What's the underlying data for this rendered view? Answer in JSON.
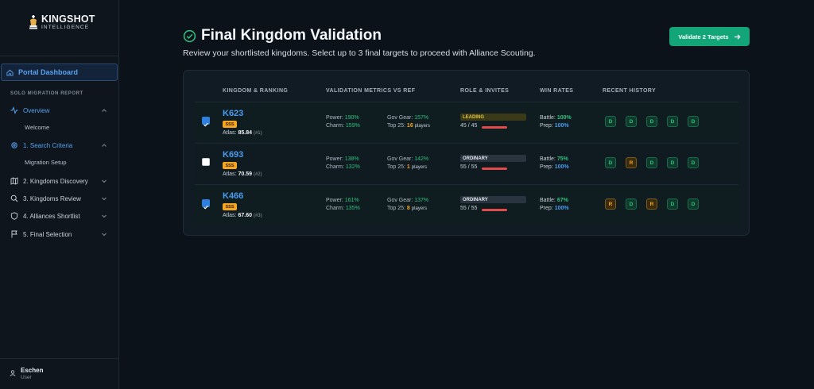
{
  "app": {
    "brand": "KINGSHOT",
    "brand_sub": "INTELLIGENCE"
  },
  "sidebar": {
    "portal_label": "Portal Dashboard",
    "section_label": "SOLO MIGRATION REPORT",
    "items": [
      {
        "label": "Overview",
        "icon": "activity-icon",
        "active": true
      },
      {
        "label": "Welcome",
        "sub": true
      },
      {
        "label": "1. Search Criteria",
        "icon": "gear-icon",
        "active": true
      },
      {
        "label": "Migration Setup",
        "sub": true
      },
      {
        "label": "2. Kingdoms Discovery",
        "icon": "map-icon",
        "active": false
      },
      {
        "label": "3. Kingdoms Review",
        "icon": "search-icon",
        "active": false
      },
      {
        "label": "4. Alliances Shortlist",
        "icon": "shield-icon",
        "active": false
      },
      {
        "label": "5. Final Selection",
        "icon": "flag-icon",
        "active": false
      }
    ],
    "user": {
      "name": "Eschen",
      "role": "User"
    }
  },
  "header": {
    "title": "Final Kingdom Validation",
    "subtitle": "Review your shortlisted kingdoms. Select up to 3 final targets to proceed with Alliance Scouting.",
    "validate_button": "Validate 2 Targets"
  },
  "table": {
    "columns": [
      "KINGDOM & RANKING",
      "VALIDATION METRICS VS REF",
      "ROLE & INVITES",
      "WIN RATES",
      "RECENT HISTORY"
    ],
    "labels": {
      "atlas": "Atlas:",
      "power": "Power:",
      "charm": "Charm:",
      "gov_gear": "Gov Gear:",
      "top25": "Top 25:",
      "players": "players",
      "battle": "Battle:",
      "prep": "Prep:"
    },
    "rows": [
      {
        "checked": true,
        "kingdom": "K623",
        "tier": "SSS",
        "atlas_score": "85.84",
        "atlas_rank": "(#1)",
        "power": "190%",
        "charm": "159%",
        "gov_gear": "157%",
        "top25": "16",
        "role": "LEADING",
        "role_type": "lead",
        "invites": "45 / 45",
        "invite_ratio": 1.0,
        "battle": "100%",
        "prep": "100%",
        "history": [
          "D",
          "D",
          "D",
          "D",
          "D"
        ]
      },
      {
        "checked": false,
        "kingdom": "K693",
        "tier": "SSS",
        "atlas_score": "70.59",
        "atlas_rank": "(#2)",
        "power": "138%",
        "charm": "132%",
        "gov_gear": "142%",
        "top25": "1",
        "role": "ORDINARY",
        "role_type": "ord",
        "invites": "55 / 55",
        "invite_ratio": 1.0,
        "battle": "75%",
        "prep": "100%",
        "history": [
          "D",
          "R",
          "D",
          "D",
          "D"
        ]
      },
      {
        "checked": true,
        "kingdom": "K466",
        "tier": "SSS",
        "atlas_score": "67.60",
        "atlas_rank": "(#3)",
        "power": "161%",
        "charm": "135%",
        "gov_gear": "137%",
        "top25": "8",
        "role": "ORDINARY",
        "role_type": "ord",
        "invites": "55 / 55",
        "invite_ratio": 1.0,
        "battle": "67%",
        "prep": "100%",
        "history": [
          "R",
          "D",
          "R",
          "D",
          "D"
        ]
      }
    ]
  }
}
